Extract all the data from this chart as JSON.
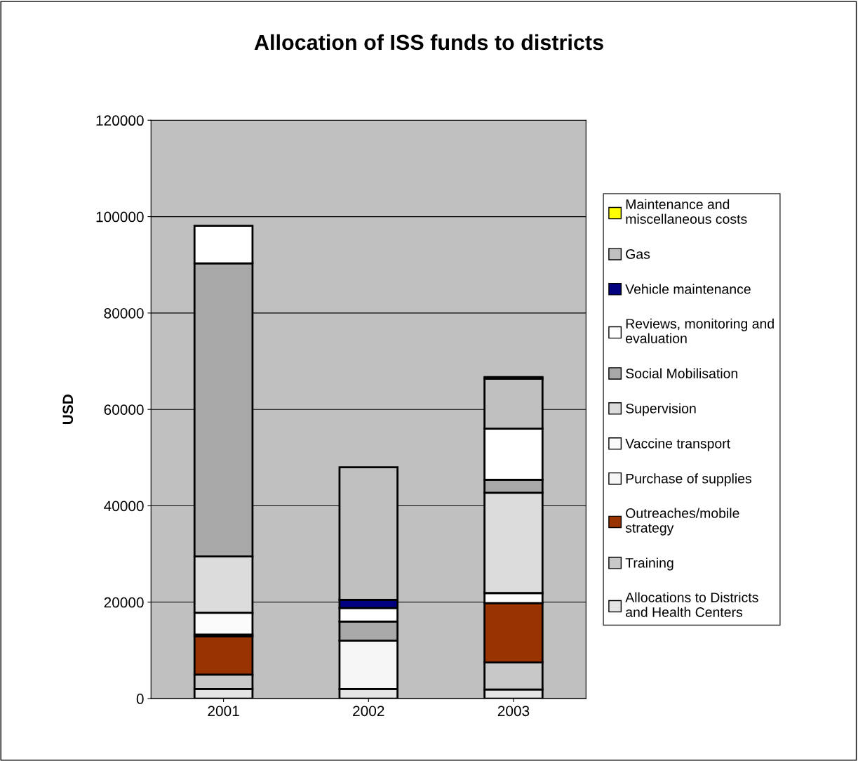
{
  "chart_data": {
    "type": "bar",
    "title": "Allocation of ISS funds to districts",
    "ylabel": "USD",
    "categories": [
      "2001",
      "2002",
      "2003"
    ],
    "stacked": true,
    "ylim": [
      0,
      120000
    ],
    "yticks": [
      0,
      20000,
      40000,
      60000,
      80000,
      100000,
      120000
    ],
    "grid": "y",
    "legend": "right",
    "series": [
      {
        "name": "Allocations to Districts and Health Centers",
        "color": "#e4e4e4",
        "values": [
          2000,
          2000,
          1900
        ]
      },
      {
        "name": "Training",
        "color": "#c8c8c8",
        "values": [
          3000,
          0,
          5600
        ]
      },
      {
        "name": "Outreaches/mobile strategy",
        "color": "#993300",
        "values": [
          7900,
          0,
          12300
        ]
      },
      {
        "name": "Purchase of supplies",
        "color": "#f6f6f6",
        "values": [
          400,
          10000,
          null
        ]
      },
      {
        "name": "Vaccine transport",
        "color": "#fbfbfb",
        "values": [
          4500,
          0,
          2100
        ]
      },
      {
        "name": "Supervision",
        "color": "#dcdcdc",
        "values": [
          11700,
          0,
          20800
        ]
      },
      {
        "name": "Social Mobilisation",
        "color": "#a8a8a8",
        "values": [
          60800,
          4000,
          2700
        ]
      },
      {
        "name": "Reviews, monitoring and evaluation",
        "color": "#ffffff",
        "values": [
          7800,
          2800,
          10600
        ]
      },
      {
        "name": "Vehicle maintenance",
        "color": "#000080",
        "values": [
          0,
          1700,
          0
        ]
      },
      {
        "name": "Gas",
        "color": "#c0c0c0",
        "values": [
          0,
          27500,
          10400
        ]
      },
      {
        "name": "Maintenance and miscellaneous costs",
        "color": "#ffff00",
        "values": [
          0,
          0,
          300
        ]
      }
    ]
  }
}
